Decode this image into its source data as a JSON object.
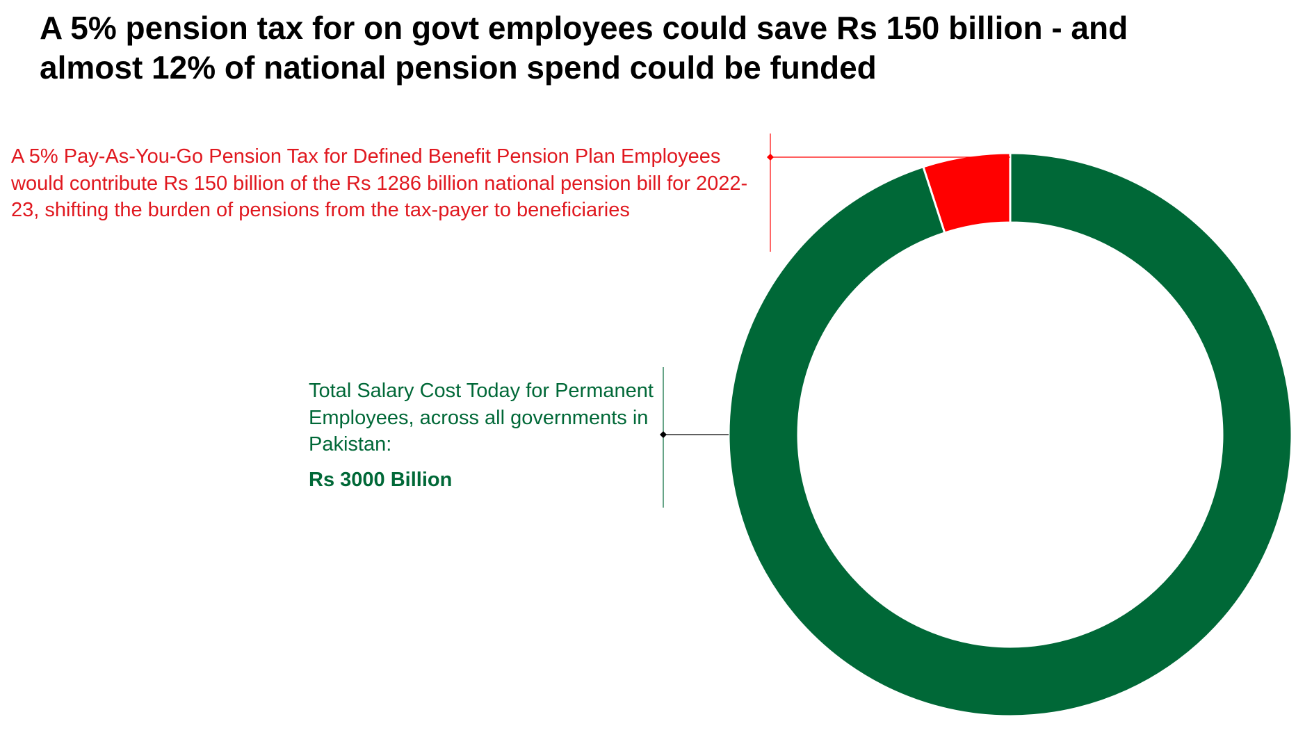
{
  "title": "A 5% pension tax for on govt employees could save Rs 150 billion - and almost 12% of national pension spend could be funded",
  "colors": {
    "background": "#ffffff",
    "title": "#000000",
    "pension_tax": "#ff0000",
    "pension_tax_text": "#e0181f",
    "salary_cost": "#006837"
  },
  "annotations": {
    "pension_tax": "A 5% Pay-As-You-Go Pension Tax for Defined Benefit Pension Plan Employees would contribute Rs 150 billion of the Rs 1286 billion national pension bill for 2022-23, shifting the burden of pensions from the tax-payer to beneficiaries",
    "salary_cost": "Total Salary Cost Today for Permanent Employees, across all governments in Pakistan:",
    "salary_cost_value": "Rs 3000 Billion"
  },
  "chart_data": {
    "type": "pie",
    "style": "donut",
    "title": "A 5% pension tax for on govt employees could save Rs 150 billion - and almost 12% of national pension spend could be funded",
    "unit": "Rs billion",
    "slices": [
      {
        "key": "pension_tax",
        "value": 150,
        "color": "#ff0000"
      },
      {
        "key": "salary_cost",
        "value": 2850,
        "color": "#006837"
      }
    ],
    "total": 3000,
    "legend": "none"
  }
}
